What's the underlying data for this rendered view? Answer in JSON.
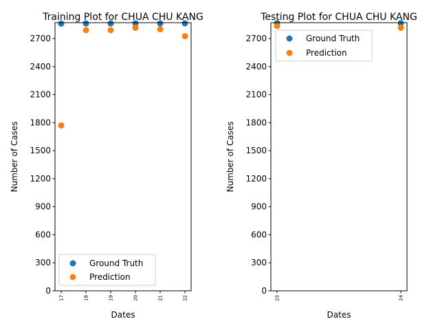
{
  "chart_data": [
    {
      "type": "scatter",
      "title": "Training Plot for CHUA CHU KANG",
      "xlabel": "Dates",
      "ylabel": "Number of Cases",
      "x": [
        "17",
        "18",
        "19",
        "20",
        "21",
        "22"
      ],
      "ylim": [
        0,
        2870
      ],
      "yticks": [
        "0",
        "300",
        "600",
        "900",
        "1200",
        "1500",
        "1800",
        "2100",
        "2400",
        "2700"
      ],
      "legend_position": "lower-left",
      "series": [
        {
          "name": "Ground Truth",
          "color": "#1f77b4",
          "values": [
            2860,
            2862,
            2862,
            2863,
            2863,
            2863
          ]
        },
        {
          "name": "Prediction",
          "color": "#ff7f0e",
          "values": [
            1770,
            2790,
            2790,
            2815,
            2800,
            2725
          ]
        }
      ]
    },
    {
      "type": "scatter",
      "title": "Testing Plot for CHUA CHU KANG",
      "xlabel": "Dates",
      "ylabel": "Number of Cases",
      "x": [
        "23",
        "24"
      ],
      "ylim": [
        0,
        2870
      ],
      "yticks": [
        "0",
        "300",
        "600",
        "900",
        "1200",
        "1500",
        "1800",
        "2100",
        "2400",
        "2700"
      ],
      "legend_position": "upper-left",
      "series": [
        {
          "name": "Ground Truth",
          "color": "#1f77b4",
          "values": [
            2865,
            2865
          ]
        },
        {
          "name": "Prediction",
          "color": "#ff7f0e",
          "values": [
            2835,
            2815
          ]
        }
      ]
    }
  ]
}
